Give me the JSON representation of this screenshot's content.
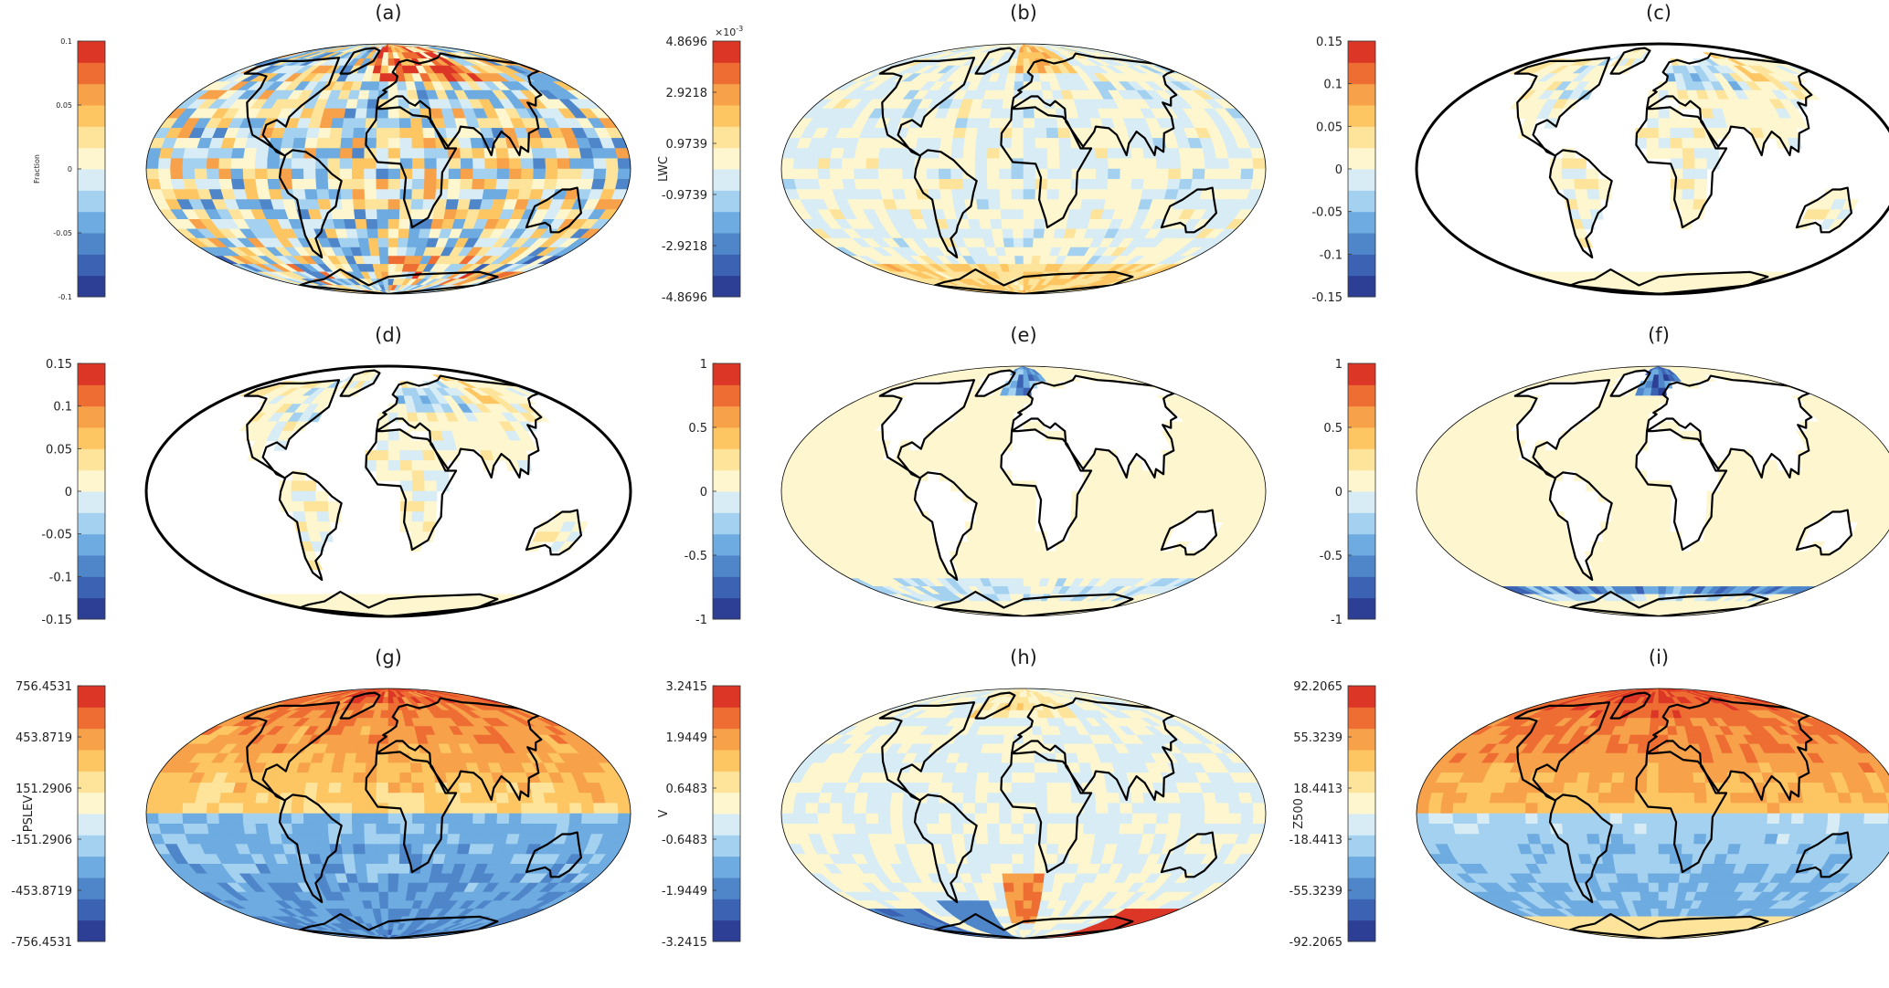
{
  "figure": {
    "background": "#ffffff",
    "map_projection": "Mollweide",
    "land_outline_color": "#000000"
  },
  "palette": [
    "#2c3f95",
    "#3c62b4",
    "#4f86c9",
    "#6dabe0",
    "#a3d1ef",
    "#d7ecf5",
    "#fdf6ce",
    "#fde49a",
    "#fdc663",
    "#f7a14a",
    "#ee6d33",
    "#dc3626"
  ],
  "chart_data": [
    {
      "type": "heatmap",
      "title": "(a)",
      "colorbar_label": "Fraction",
      "clim": [
        -0.1,
        0.1
      ],
      "ticks": [
        "0.1",
        "0.05",
        "0",
        "-0.05",
        "-0.1"
      ],
      "data_coverage": "global",
      "pattern": "mixed"
    },
    {
      "type": "heatmap",
      "title": "(b)",
      "colorbar_label": "LWC",
      "exponent_label": "×10",
      "exponent_power": "-3",
      "clim": [
        -4.8696,
        4.8696
      ],
      "ticks": [
        "4.8696",
        "2.9218",
        "0.9739",
        "-0.9739",
        "-2.9218",
        "-4.8696"
      ],
      "data_coverage": "global",
      "pattern": "weak"
    },
    {
      "type": "heatmap",
      "title": "(c)",
      "colorbar_label": "",
      "clim": [
        -0.15,
        0.15
      ],
      "ticks": [
        "0.15",
        "0.1",
        "0.05",
        "0",
        "-0.05",
        "-0.1",
        "-0.15"
      ],
      "data_coverage": "land",
      "pattern": "land"
    },
    {
      "type": "heatmap",
      "title": "(d)",
      "colorbar_label": "",
      "clim": [
        -0.15,
        0.15
      ],
      "ticks": [
        "0.15",
        "0.1",
        "0.05",
        "0",
        "-0.05",
        "-0.1",
        "-0.15"
      ],
      "data_coverage": "land",
      "pattern": "land"
    },
    {
      "type": "heatmap",
      "title": "(e)",
      "colorbar_label": "",
      "clim": [
        -1,
        1
      ],
      "ticks": [
        "1",
        "0.5",
        "0",
        "-0.5",
        "-1"
      ],
      "data_coverage": "ocean",
      "pattern": "ice_e"
    },
    {
      "type": "heatmap",
      "title": "(f)",
      "colorbar_label": "",
      "clim": [
        -1,
        1
      ],
      "ticks": [
        "1",
        "0.5",
        "0",
        "-0.5",
        "-1"
      ],
      "data_coverage": "ocean",
      "pattern": "ice_f"
    },
    {
      "type": "heatmap",
      "title": "(g)",
      "colorbar_label": "PSLEV",
      "clim": [
        -756.4531,
        756.4531
      ],
      "ticks": [
        "756.4531",
        "453.8719",
        "151.2906",
        "-151.2906",
        "-453.8719",
        "-756.4531"
      ],
      "data_coverage": "global",
      "pattern": "hemispheric_g"
    },
    {
      "type": "heatmap",
      "title": "(h)",
      "colorbar_label": "V",
      "clim": [
        -3.2415,
        3.2415
      ],
      "ticks": [
        "3.2415",
        "1.9449",
        "0.6483",
        "-0.6483",
        "-1.9449",
        "-3.2415"
      ],
      "data_coverage": "global",
      "pattern": "v_h"
    },
    {
      "type": "heatmap",
      "title": "(i)",
      "colorbar_label": "Z500",
      "clim": [
        -92.2065,
        92.2065
      ],
      "ticks": [
        "92.2065",
        "55.3239",
        "18.4413",
        "-18.4413",
        "-55.3239",
        "-92.2065"
      ],
      "data_coverage": "global",
      "pattern": "hemispheric_i"
    }
  ]
}
